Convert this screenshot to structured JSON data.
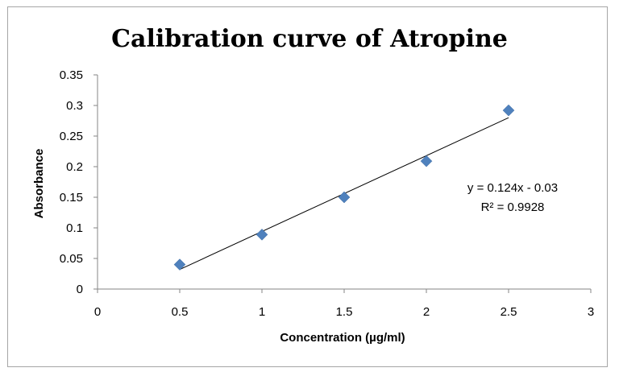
{
  "chart_data": {
    "type": "scatter",
    "title": "Calibration curve of Atropine",
    "xlabel": "Concentration (µg/ml)",
    "ylabel": "Absorbance",
    "xlim": [
      0,
      3
    ],
    "ylim": [
      0,
      0.35
    ],
    "x_ticks": [
      "0",
      "0.5",
      "1",
      "1.5",
      "2",
      "2.5",
      "3"
    ],
    "y_ticks": [
      "0",
      "0.05",
      "0.1",
      "0.15",
      "0.2",
      "0.25",
      "0.3",
      "0.35"
    ],
    "grid": false,
    "legend": "none",
    "series": [
      {
        "marker": "diamond",
        "color": "#4f81bd",
        "x": [
          0.5,
          1,
          1.5,
          2,
          2.5
        ],
        "y": [
          0.04,
          0.089,
          0.15,
          0.209,
          0.292
        ]
      }
    ],
    "trendline": {
      "type": "linear",
      "slope": 0.124,
      "intercept": -0.03,
      "color": "#000000"
    },
    "equation_label": "y = 0.124x - 0.03",
    "r2_label": "R² = 0.9928"
  }
}
